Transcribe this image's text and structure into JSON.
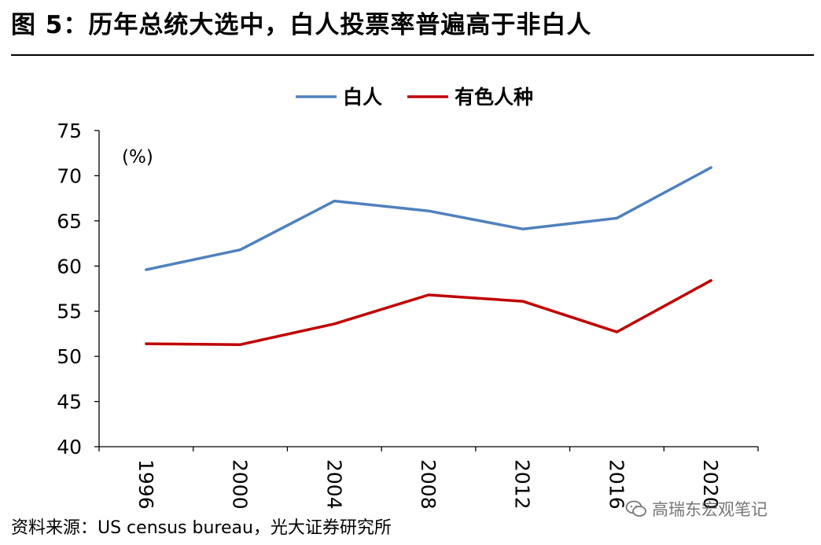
{
  "header": {
    "title": "图 5：历年总统大选中，白人投票率普遍高于非白人"
  },
  "footer": {
    "source": "资料来源：US census bureau，光大证券研究所",
    "watermark": "高瑞东宏观笔记",
    "watermark_icon": "wechat-icon"
  },
  "chart_data": {
    "type": "line",
    "x": [
      "1996",
      "2000",
      "2004",
      "2008",
      "2012",
      "2016",
      "2020"
    ],
    "series": [
      {
        "name": "白人",
        "color": "#4F81BD",
        "values": [
          59.6,
          61.8,
          67.2,
          66.1,
          64.1,
          65.3,
          70.9
        ]
      },
      {
        "name": "有色人种",
        "color": "#C00000",
        "values": [
          51.4,
          51.3,
          53.6,
          56.8,
          56.1,
          52.7,
          58.4
        ]
      }
    ],
    "ylim": [
      40,
      75
    ],
    "yticks": [
      40,
      45,
      50,
      55,
      60,
      65,
      70,
      75
    ],
    "unit_label": "(%)",
    "legend_position": "top-center",
    "grid": false
  }
}
